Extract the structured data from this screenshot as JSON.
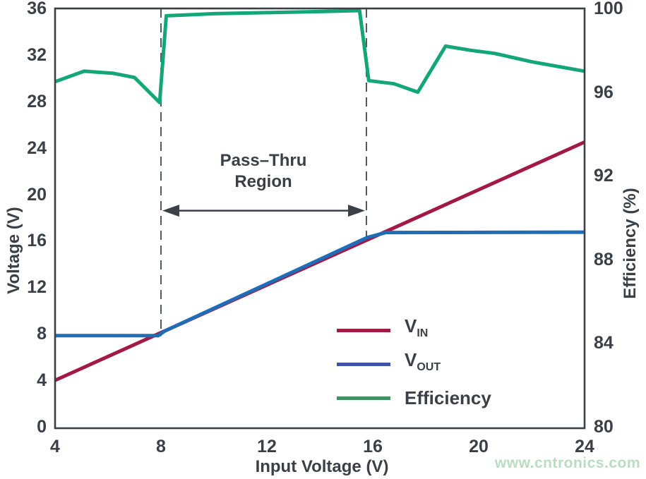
{
  "watermark": "www.cntronics.com",
  "colors": {
    "axis_and_text": "#3b4046",
    "dashed_guides": "#55595f",
    "vin_line": "#a31945",
    "vout_line": "#1f6db6",
    "efficiency_line": "#12a678",
    "legend_vin_swatch": "#9e1b42",
    "legend_vout_swatch": "#3c55a6",
    "legend_efficiency_swatch": "#43905f",
    "watermark_text": "#b9dcc2",
    "background": "#ffffff"
  },
  "chart_data": {
    "type": "line",
    "title": "",
    "xlabel": "Input Voltage (V)",
    "ylabel_left": "Voltage (V)",
    "ylabel_right": "Efficiency (%)",
    "x_range": [
      4,
      24
    ],
    "y_left_range": [
      0,
      36
    ],
    "y_right_range": [
      80,
      100
    ],
    "x_ticks": [
      4,
      8,
      12,
      16,
      20,
      24
    ],
    "y_left_ticks": [
      0,
      4,
      8,
      12,
      16,
      20,
      24,
      28,
      32,
      36
    ],
    "y_right_ticks": [
      80,
      84,
      88,
      92,
      96,
      100
    ],
    "grid": false,
    "legend_position": "inside-bottom-right",
    "series": [
      {
        "name": "VIN",
        "axis": "left",
        "color": "#a31945",
        "points": [
          [
            4,
            4.0
          ],
          [
            24,
            24.5
          ]
        ]
      },
      {
        "name": "VOUT",
        "axis": "left",
        "color": "#1f6db6",
        "points": [
          [
            4,
            7.85
          ],
          [
            7.9,
            7.85
          ],
          [
            8.15,
            8.25
          ],
          [
            15.8,
            16.3
          ],
          [
            16.5,
            16.72
          ],
          [
            24,
            16.75
          ]
        ]
      },
      {
        "name": "Efficiency",
        "axis": "right",
        "color": "#12a678",
        "points": [
          [
            4,
            96.5
          ],
          [
            5.1,
            97.0
          ],
          [
            6.2,
            96.9
          ],
          [
            7.0,
            96.7
          ],
          [
            7.95,
            95.5
          ],
          [
            8.2,
            99.65
          ],
          [
            10,
            99.75
          ],
          [
            12,
            99.8
          ],
          [
            14,
            99.85
          ],
          [
            15.5,
            99.9
          ],
          [
            15.85,
            96.55
          ],
          [
            16.8,
            96.4
          ],
          [
            17.7,
            96.0
          ],
          [
            18.75,
            98.2
          ],
          [
            19.7,
            98.0
          ],
          [
            20.6,
            97.85
          ],
          [
            22,
            97.45
          ],
          [
            24,
            97.0
          ]
        ]
      }
    ],
    "annotation": {
      "label_line1": "Pass–Thru",
      "label_line2": "Region",
      "x_start": 8.0,
      "x_end": 15.76,
      "arrow_y_left_axis": 18.6,
      "dashed_lines": [
        {
          "x": 8.0,
          "y_top_v": 36,
          "y_bottom_v": 7.8
        },
        {
          "x": 15.76,
          "y_top_v": 36,
          "y_bottom_v": 16.25
        }
      ]
    },
    "legend": [
      {
        "label": "V",
        "subscript": "IN",
        "swatch_color": "#9e1b42"
      },
      {
        "label": "V",
        "subscript": "OUT",
        "swatch_color": "#3c55a6"
      },
      {
        "label": "Efficiency",
        "subscript": "",
        "swatch_color": "#43905f"
      }
    ]
  }
}
